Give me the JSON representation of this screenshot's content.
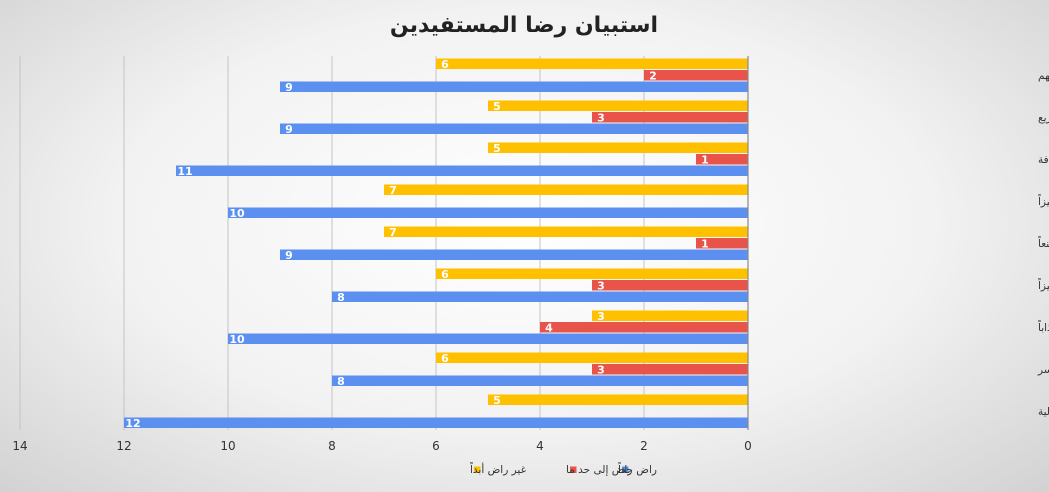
{
  "chart_data": {
    "type": "bar",
    "orientation": "horizontal",
    "title": "استبيان رضا المستفيدين",
    "categories": [
      "لائحة الحقوق والواجبات تلبي احتياجات المستفيدين وتطلعاتهم",
      "شكاوى المستفيدين تؤخذ بعين الاعتبار وتعالج بشكل سريع",
      "الاجراءات والتعليمات لانظمة العمل والخدمات في الجمعية واضحة وشفافة",
      "تواصل منسوبي الجمعية مع المستفيدين والمجتمع مميزاً",
      "استجابة الجمعية لطلبات المستفيدين سريعا ومقنعاً",
      "كفاءة أداء العاملين في الجمعية مميزاً",
      "سلوك منسوبي الجمعية ومقدمي الخدمة مميزا وجذاباً",
      "يمكنني الوصول للخدمات التي تقدمها الجمعية بسهولة ويسر",
      "الخدمات التي تقدمها الجمعية ذات جودة عالية"
    ],
    "series": [
      {
        "name": "غير راض أبداً",
        "color": "#FFC000",
        "values": [
          6,
          5,
          5,
          7,
          7,
          6,
          3,
          6,
          5
        ]
      },
      {
        "name": "راض إلى حد ما",
        "color": "#E8534A",
        "values": [
          2,
          3,
          1,
          null,
          1,
          3,
          4,
          3,
          null
        ]
      },
      {
        "name": "راض جداً",
        "color": "#5B8FF0",
        "values": [
          9,
          9,
          11,
          10,
          9,
          8,
          10,
          8,
          12
        ]
      }
    ],
    "xlim": [
      0,
      14
    ],
    "xticks": [
      14,
      12,
      10,
      8,
      6,
      4,
      2,
      0
    ],
    "x_reversed": true,
    "gridlines": true,
    "legend_position": "bottom-center",
    "legend_order": [
      "راض جداً",
      "راض إلى حد ما",
      "غير راض أبداً"
    ]
  }
}
